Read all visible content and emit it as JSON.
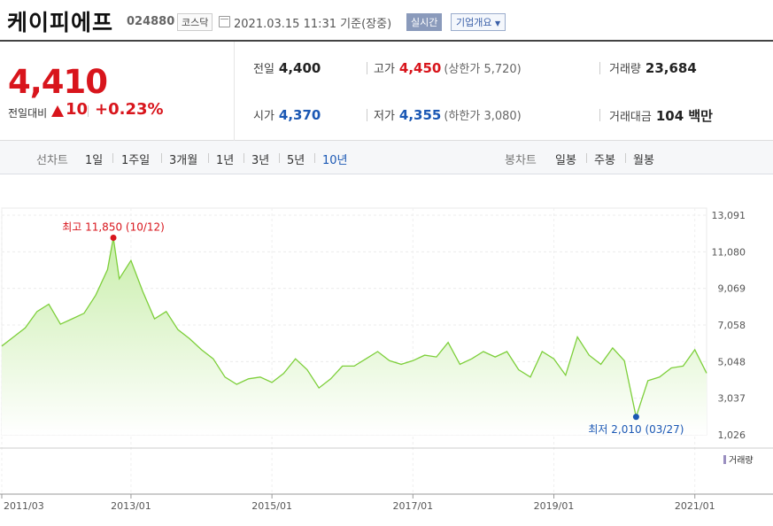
{
  "header": {
    "name": "케이피에프",
    "code": "024880",
    "market": "코스닥",
    "datetime": "2021.03.15 11:31",
    "basis": "기준(장중)",
    "realtime_label": "실시간",
    "company_info_label": "기업개요"
  },
  "summary": {
    "price": "4,410",
    "change_label": "전일대비",
    "change_value": "10",
    "change_pct": "+0.23%",
    "prev_label": "전일",
    "prev_value": "4,400",
    "high_label": "고가",
    "high_value": "4,450",
    "upper_limit": "(상한가 5,720)",
    "volume_label": "거래량",
    "volume_value": "23,684",
    "open_label": "시가",
    "open_value": "4,370",
    "low_label": "저가",
    "low_value": "4,355",
    "lower_limit": "(하한가 3,080)",
    "amount_label": "거래대금",
    "amount_value": "104 백만"
  },
  "periods": {
    "line_label": "선차트",
    "line_items": [
      "1일",
      "1주일",
      "3개월",
      "1년",
      "3년",
      "5년",
      "10년"
    ],
    "selected": "10년",
    "candle_label": "봉차트",
    "candle_items": [
      "일봉",
      "주봉",
      "월봉"
    ]
  },
  "colors": {
    "up": "#d8151c",
    "down": "#1b58b4",
    "line": "#7dcf3a",
    "fill_top": "#c9eeab",
    "volume": "#9a8fc0"
  },
  "chart_data": {
    "type": "area",
    "x_ticks": [
      "2011/03",
      "2013/01",
      "2015/01",
      "2017/01",
      "2019/01",
      "2021/01"
    ],
    "y_ticks": [
      "13,091",
      "11,080",
      "9,069",
      "7,058",
      "5,048",
      "3,037",
      "1,026"
    ],
    "ylim": [
      1026,
      13091
    ],
    "grid": true,
    "max_annotation": "최고 11,850 (10/12)",
    "min_annotation": "최저 2,010 (03/27)",
    "volume_legend": "거래량",
    "series": [
      {
        "x": [
          "2011/03",
          "2011/05",
          "2011/07",
          "2011/09",
          "2011/11",
          "2012/01",
          "2012/03",
          "2012/05",
          "2012/07",
          "2012/09",
          "2012/10",
          "2012/11",
          "2013/01",
          "2013/03",
          "2013/05",
          "2013/07",
          "2013/09",
          "2013/11",
          "2014/01",
          "2014/03",
          "2014/05",
          "2014/07",
          "2014/09",
          "2014/11",
          "2015/01",
          "2015/03",
          "2015/05",
          "2015/07",
          "2015/09",
          "2015/11",
          "2016/01",
          "2016/03",
          "2016/05",
          "2016/07",
          "2016/09",
          "2016/11",
          "2017/01",
          "2017/03",
          "2017/05",
          "2017/07",
          "2017/09",
          "2017/11",
          "2018/01",
          "2018/03",
          "2018/05",
          "2018/07",
          "2018/09",
          "2018/11",
          "2019/01",
          "2019/03",
          "2019/05",
          "2019/07",
          "2019/09",
          "2019/11",
          "2020/01",
          "2020/03",
          "2020/05",
          "2020/07",
          "2020/09",
          "2020/11",
          "2021/01",
          "2021/03"
        ],
        "values": [
          5900,
          6400,
          6900,
          7800,
          8200,
          7100,
          7400,
          7700,
          8700,
          10100,
          11850,
          9600,
          10600,
          8900,
          7400,
          7800,
          6800,
          6300,
          5700,
          5200,
          4200,
          3800,
          4100,
          4200,
          3900,
          4400,
          5200,
          4600,
          3600,
          4100,
          4800,
          4800,
          5200,
          5600,
          5100,
          4900,
          5100,
          5400,
          5300,
          6100,
          4900,
          5200,
          5600,
          5300,
          5600,
          4600,
          4200,
          5600,
          5200,
          4300,
          6400,
          5400,
          4900,
          5800,
          5100,
          2010,
          4000,
          4200,
          4700,
          4800,
          5700,
          4410
        ]
      }
    ]
  }
}
